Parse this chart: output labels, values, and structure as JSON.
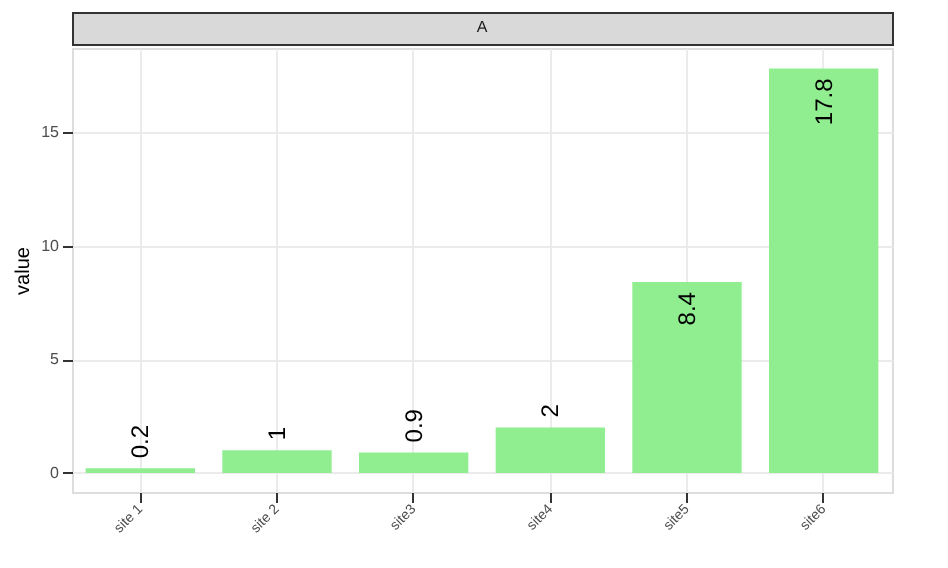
{
  "chart_data": {
    "type": "bar",
    "title": "A",
    "ylabel": "value",
    "categories": [
      "site 1",
      "site 2",
      "site3",
      "site4",
      "site5",
      "site6"
    ],
    "values": [
      0.2,
      1,
      0.9,
      2,
      8.4,
      17.8
    ],
    "color": "#90ee90",
    "ylim": [
      -0.84,
      18.7
    ],
    "yticks": [
      0,
      5,
      10,
      15
    ],
    "grid": true,
    "data_labels": true
  }
}
